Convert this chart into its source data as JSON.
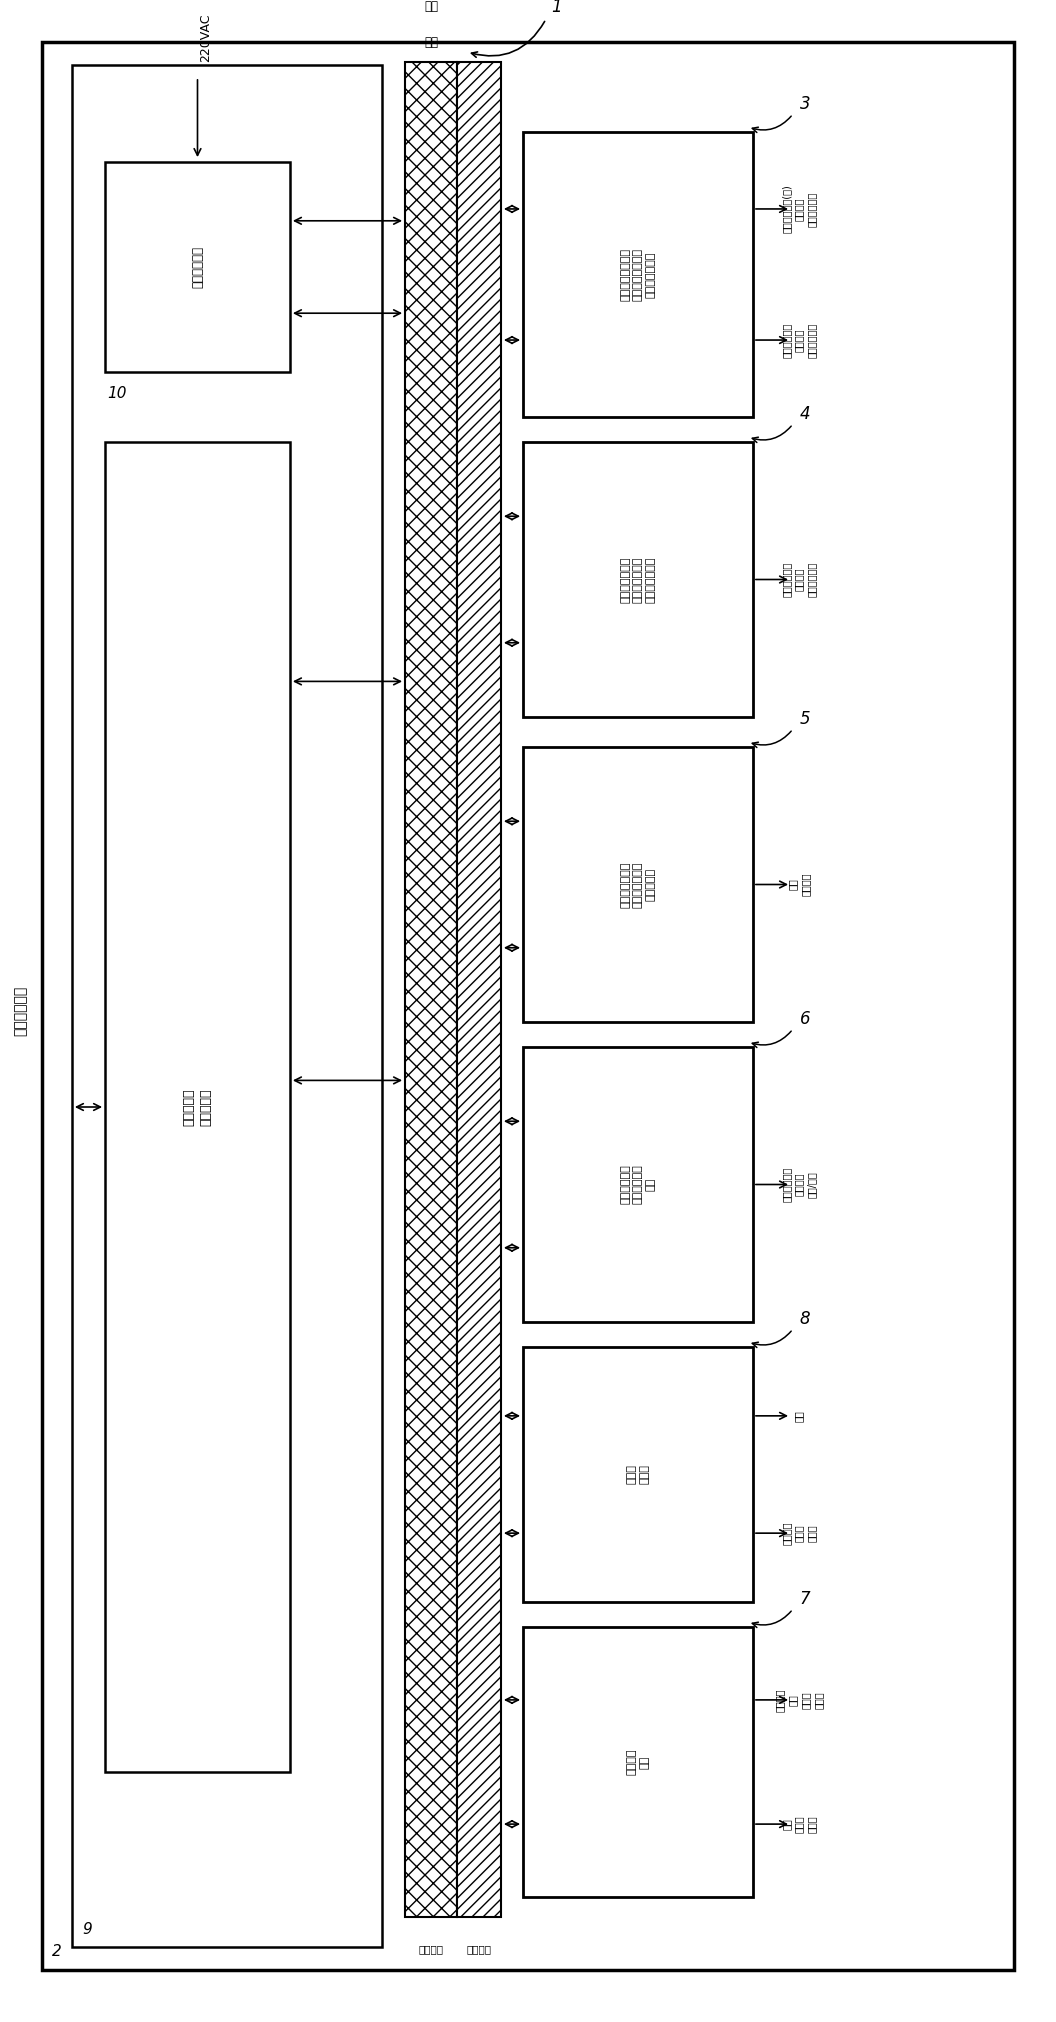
{
  "bg_color": "#ffffff",
  "title_vertical": "人机交互系统",
  "power_label": "220VAC",
  "bus_label1": "数据总线",
  "bus_label2": "电源总线",
  "backplane_label_line1": "背板",
  "backplane_label_line2": "总线",
  "item1": "1",
  "item2": "2",
  "item9": "9",
  "item10_label_line1": "低压电源模块",
  "item10_number": "10",
  "control_label": "总控制模块\n总线控制器",
  "blocks": [
    {
      "id": 3,
      "label_line1": "探测器前端模拟电",
      "label_line2": "路板信号输出模块",
      "label_line3": "及触发逻辑控制",
      "label": "探测器前端模拟电\n路板信号输出模块\n及触发逻辑控制",
      "out1": "电压波形发生(中)\n信号输出\n幅度调节信号",
      "out2": "电流波形发生\n信号输出\n幅度调节信号",
      "num_out": 2,
      "num_bus_arrows": 2
    },
    {
      "id": 4,
      "label": "末一级前置放大\n电路板信号输出\n模块及触发控制",
      "out1": "电流波形输出\n信号输出\n幅度调节信号",
      "num_out": 1,
      "num_bus_arrows": 2
    },
    {
      "id": 5,
      "label": "末电流前置放大\n器信号输出模块\n及触发控制",
      "out1": "电流\n波形输出",
      "num_out": 1,
      "num_bus_arrows": 2
    },
    {
      "id": 6,
      "label": "负高压信号发\n生模块及触发\n控制",
      "out1": "高压输出信号\n高压调节\n信号/电流",
      "num_out": 1,
      "num_bus_arrows": 2
    },
    {
      "id": 8,
      "label": "波形发\n生模块",
      "out1": "信号",
      "out2": "模拟输入\n数字量\n调节量",
      "num_out": 2,
      "num_bus_arrows": 2
    },
    {
      "id": 7,
      "label": "波形控制\n模块",
      "out1": "波形控制\n串口\n数据输\n入输出",
      "out2": "信号\n数据输\n入输出",
      "num_out": 2,
      "num_bus_arrows": 2
    }
  ]
}
